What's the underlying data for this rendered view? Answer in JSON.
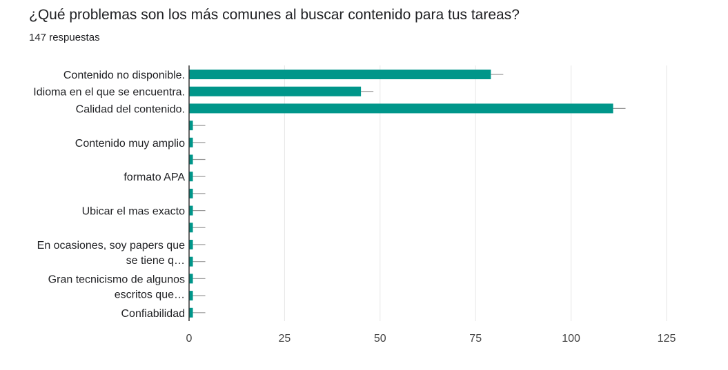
{
  "header": {
    "question": "¿Qué problemas son los más comunes al buscar contenido para tus tareas?",
    "responses": "147 respuestas"
  },
  "chart_data": {
    "type": "bar",
    "orientation": "horizontal",
    "categories": [
      "Contenido no disponible.",
      "Idioma en el que se encuentra.",
      "Calidad del contenido.",
      "",
      "Contenido muy amplio",
      "",
      "formato APA",
      "",
      "Ubicar el mas exacto",
      "",
      [
        "En ocasiones, soy papers que",
        "se tiene q…"
      ],
      "",
      [
        "Gran tecnicismo de algunos",
        "escritos que…"
      ],
      "",
      "Confiabilidad"
    ],
    "series": [
      {
        "values": [
          79,
          45,
          111,
          1,
          1,
          1,
          1,
          1,
          1,
          1,
          1,
          1,
          1,
          1,
          1
        ]
      }
    ],
    "xlim": [
      0,
      125
    ],
    "xticks": [
      0,
      25,
      50,
      75,
      100,
      125
    ],
    "grid": true,
    "error_bars": true,
    "colors": {
      "bar": "#00968a",
      "axis": "#333333",
      "grid": "#e6e6e6",
      "whisker": "#999999"
    }
  }
}
